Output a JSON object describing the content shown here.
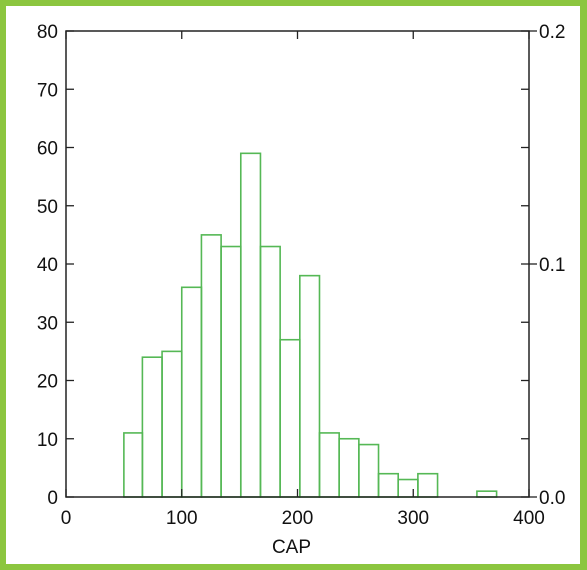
{
  "chart_data": {
    "type": "bar",
    "title": "",
    "xlabel": "CAP",
    "ylabel": "",
    "xlim": [
      0,
      400
    ],
    "ylim": [
      0,
      80
    ],
    "y2lim": [
      0.0,
      0.2
    ],
    "x_ticks": [
      "0",
      "100",
      "200",
      "300",
      "400"
    ],
    "x_tick_values": [
      0,
      100,
      200,
      300,
      400
    ],
    "y_ticks": [
      "0",
      "10",
      "20",
      "30",
      "40",
      "50",
      "60",
      "70",
      "80"
    ],
    "y_tick_values": [
      0,
      10,
      20,
      30,
      40,
      50,
      60,
      70,
      80
    ],
    "y2_ticks": [
      "0.0",
      "0.1",
      "0.2"
    ],
    "y2_tick_values": [
      0.0,
      0.1,
      0.2
    ],
    "bar_color": "#55b855",
    "bins": [
      {
        "start": 50,
        "end": 66,
        "count": 11
      },
      {
        "start": 66,
        "end": 83,
        "count": 24
      },
      {
        "start": 83,
        "end": 100,
        "count": 25
      },
      {
        "start": 100,
        "end": 117,
        "count": 36
      },
      {
        "start": 117,
        "end": 134,
        "count": 45
      },
      {
        "start": 134,
        "end": 151,
        "count": 43
      },
      {
        "start": 151,
        "end": 168,
        "count": 59
      },
      {
        "start": 168,
        "end": 185,
        "count": 43
      },
      {
        "start": 185,
        "end": 202,
        "count": 27
      },
      {
        "start": 202,
        "end": 219,
        "count": 38
      },
      {
        "start": 219,
        "end": 236,
        "count": 11
      },
      {
        "start": 236,
        "end": 253,
        "count": 10
      },
      {
        "start": 253,
        "end": 270,
        "count": 9
      },
      {
        "start": 270,
        "end": 287,
        "count": 4
      },
      {
        "start": 287,
        "end": 304,
        "count": 3
      },
      {
        "start": 304,
        "end": 321,
        "count": 4
      },
      {
        "start": 355,
        "end": 372,
        "count": 1
      }
    ]
  }
}
